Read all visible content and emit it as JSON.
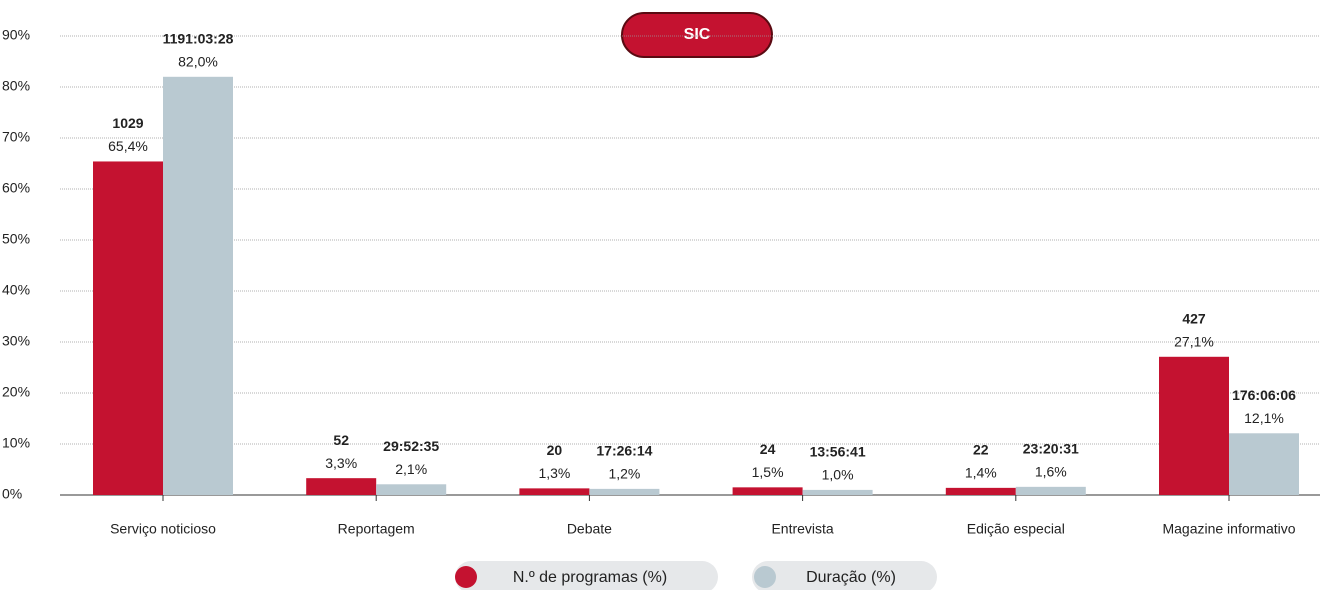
{
  "chart_data": {
    "type": "bar",
    "title": "SIC",
    "categories": [
      "Serviço noticioso",
      "Reportagem",
      "Debate",
      "Entrevista",
      "Edição especial",
      "Magazine informativo"
    ],
    "series": [
      {
        "name": "N.º de programas (%)",
        "color": "#c41230",
        "values": [
          65.4,
          3.3,
          1.3,
          1.5,
          1.4,
          27.1
        ],
        "value_labels": [
          "65,4%",
          "3,3%",
          "1,3%",
          "1,5%",
          "1,4%",
          "27,1%"
        ],
        "annotations": [
          "1029",
          "52",
          "20",
          "24",
          "22",
          "427"
        ]
      },
      {
        "name": "Duração (%)",
        "color": "#b9c9d1",
        "values": [
          82.0,
          2.1,
          1.2,
          1.0,
          1.6,
          12.1
        ],
        "value_labels": [
          "82,0%",
          "2,1%",
          "1,2%",
          "1,0%",
          "1,6%",
          "12,1%"
        ],
        "annotations": [
          "1191:03:28",
          "29:52:35",
          "17:26:14",
          "13:56:41",
          "23:20:31",
          "176:06:06"
        ]
      }
    ],
    "ylim": [
      0,
      90
    ],
    "yticks": [
      {
        "value": 0,
        "label": "0%"
      },
      {
        "value": 10,
        "label": "10%"
      },
      {
        "value": 20,
        "label": "20%"
      },
      {
        "value": 30,
        "label": "30%"
      },
      {
        "value": 40,
        "label": "40%"
      },
      {
        "value": 50,
        "label": "50%"
      },
      {
        "value": 60,
        "label": "60%"
      },
      {
        "value": 70,
        "label": "70%"
      },
      {
        "value": 80,
        "label": "80%"
      },
      {
        "value": 90,
        "label": "90%"
      }
    ],
    "grid": true,
    "legend": "bottom"
  }
}
